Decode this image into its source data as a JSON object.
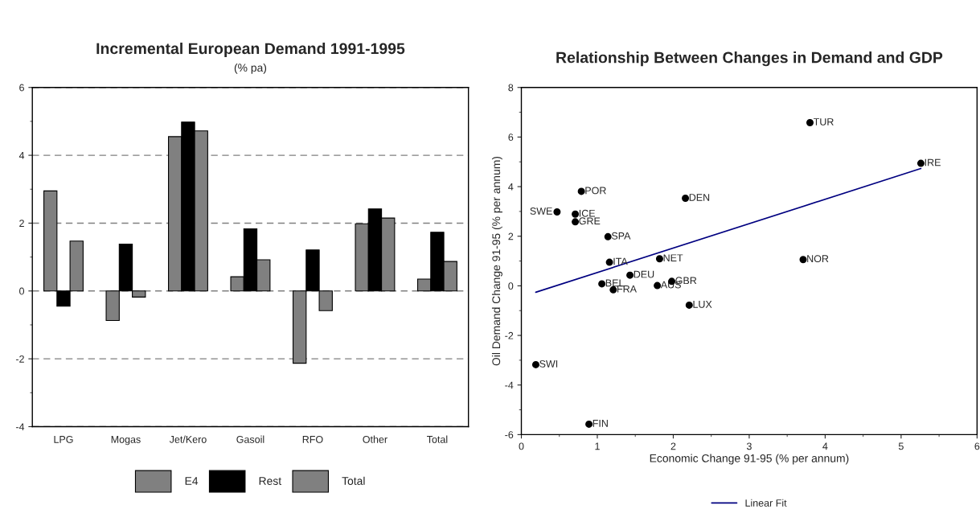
{
  "chart_data": [
    {
      "type": "bar",
      "title": "Incremental European Demand 1991-1995",
      "subtitle": "(% pa)",
      "categories": [
        "LPG",
        "Mogas",
        "Jet/Kero",
        "Gasoil",
        "RFO",
        "Other",
        "Total"
      ],
      "series": [
        {
          "name": "E4",
          "color": "#808080",
          "values": [
            2.95,
            -0.87,
            4.55,
            0.42,
            -2.13,
            1.98,
            0.35
          ]
        },
        {
          "name": "Rest",
          "color": "#000000",
          "values": [
            -0.45,
            1.38,
            4.98,
            1.83,
            1.21,
            2.42,
            1.73
          ]
        },
        {
          "name": "Total",
          "color": "#808080",
          "values": [
            1.47,
            -0.18,
            4.72,
            0.92,
            -0.58,
            2.15,
            0.87
          ]
        }
      ],
      "ylim": [
        -4,
        6
      ],
      "yticks": [
        -4,
        -2,
        0,
        2,
        4,
        6
      ],
      "grid": "y",
      "legend": "bottom"
    },
    {
      "type": "scatter",
      "title": "Relationship Between Changes in Demand and GDP",
      "xlabel": "Economic Change 91-95 (% per annum)",
      "ylabel": "Oil Demand Change 91-95 (% per annum)",
      "series": [
        {
          "type": "scatter",
          "color": "#000000",
          "marker": "circle",
          "x": [
            3.8,
            5.26,
            0.79,
            2.16,
            0.47,
            0.71,
            0.71,
            1.14,
            1.16,
            1.82,
            3.71,
            1.43,
            1.06,
            1.21,
            1.79,
            1.98,
            2.21,
            0.19,
            0.89
          ],
          "values": [
            6.58,
            4.94,
            3.81,
            3.53,
            2.98,
            2.89,
            2.58,
            1.98,
            0.95,
            1.09,
            1.06,
            0.43,
            0.08,
            -0.16,
            0.01,
            0.18,
            -0.78,
            -3.18,
            -5.58
          ]
        },
        {
          "type": "line",
          "name": "Linear Fit",
          "color": "#000080",
          "x": [
            0.19,
            5.26
          ],
          "values": [
            -0.26,
            4.73
          ]
        }
      ],
      "annotations": [
        {
          "text": "TUR",
          "x": 3.8,
          "y": 6.58
        },
        {
          "text": "IRE",
          "x": 5.26,
          "y": 4.94
        },
        {
          "text": "POR",
          "x": 0.79,
          "y": 3.81
        },
        {
          "text": "DEN",
          "x": 2.16,
          "y": 3.53
        },
        {
          "text": "SWE",
          "x": 0.47,
          "y": 2.98
        },
        {
          "text": "ICE",
          "x": 0.71,
          "y": 2.89
        },
        {
          "text": "GRE",
          "x": 0.71,
          "y": 2.58
        },
        {
          "text": "SPA",
          "x": 1.14,
          "y": 1.98
        },
        {
          "text": "ITA",
          "x": 1.16,
          "y": 0.95
        },
        {
          "text": "NET",
          "x": 1.82,
          "y": 1.09
        },
        {
          "text": "NOR",
          "x": 3.71,
          "y": 1.06
        },
        {
          "text": "DEU",
          "x": 1.43,
          "y": 0.43
        },
        {
          "text": "BEL",
          "x": 1.06,
          "y": 0.08
        },
        {
          "text": "FRA",
          "x": 1.21,
          "y": -0.16
        },
        {
          "text": "AUS",
          "x": 1.79,
          "y": 0.01
        },
        {
          "text": "GBR",
          "x": 1.98,
          "y": 0.18
        },
        {
          "text": "LUX",
          "x": 2.21,
          "y": -0.78
        },
        {
          "text": "SWI",
          "x": 0.19,
          "y": -3.18
        },
        {
          "text": "FIN",
          "x": 0.89,
          "y": -5.58
        }
      ],
      "xlim": [
        0,
        6
      ],
      "xticks": [
        0,
        1,
        2,
        3,
        4,
        5,
        6
      ],
      "ylim": [
        -6,
        8
      ],
      "yticks": [
        -6,
        -4,
        -2,
        0,
        2,
        4,
        6,
        8
      ],
      "grid": false,
      "legend": "bottom"
    }
  ]
}
